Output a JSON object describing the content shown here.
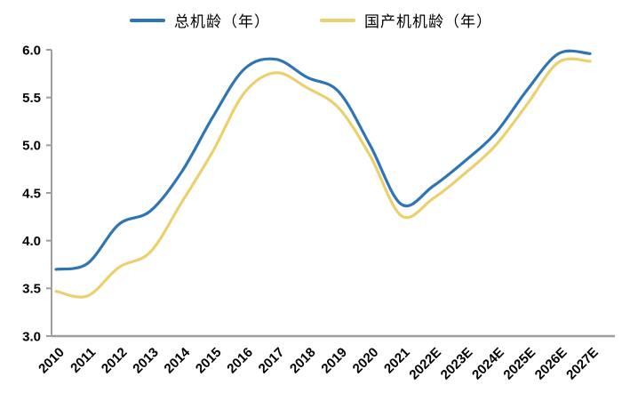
{
  "chart_data": {
    "type": "line",
    "title": "",
    "xlabel": "",
    "ylabel": "",
    "categories": [
      "2010",
      "2011",
      "2012",
      "2013",
      "2014",
      "2015",
      "2016",
      "2017",
      "2018",
      "2019",
      "2020",
      "2021",
      "2022E",
      "2023E",
      "2024E",
      "2025E",
      "2026E",
      "2027E"
    ],
    "series": [
      {
        "name": "总机龄（年）",
        "color": "#2E75B6",
        "values": [
          3.7,
          3.76,
          4.17,
          4.31,
          4.72,
          5.3,
          5.8,
          5.9,
          5.71,
          5.56,
          5.0,
          4.38,
          4.57,
          4.83,
          5.13,
          5.58,
          5.96,
          5.96
        ]
      },
      {
        "name": "国产机机龄（年）",
        "color": "#ECD06E",
        "values": [
          3.47,
          3.42,
          3.72,
          3.88,
          4.4,
          4.94,
          5.55,
          5.76,
          5.6,
          5.39,
          4.89,
          4.26,
          4.44,
          4.7,
          5.0,
          5.43,
          5.87,
          5.88
        ]
      }
    ],
    "ylim": [
      3.0,
      6.0
    ],
    "ytick_step": 0.5,
    "ytick_labels": [
      "3.0",
      "3.5",
      "4.0",
      "4.5",
      "5.0",
      "5.5",
      "6.0"
    ],
    "grid": false,
    "smooth": true,
    "legend_position": "top",
    "axis_color": "#9E9E9E",
    "text_color": "#000000"
  }
}
